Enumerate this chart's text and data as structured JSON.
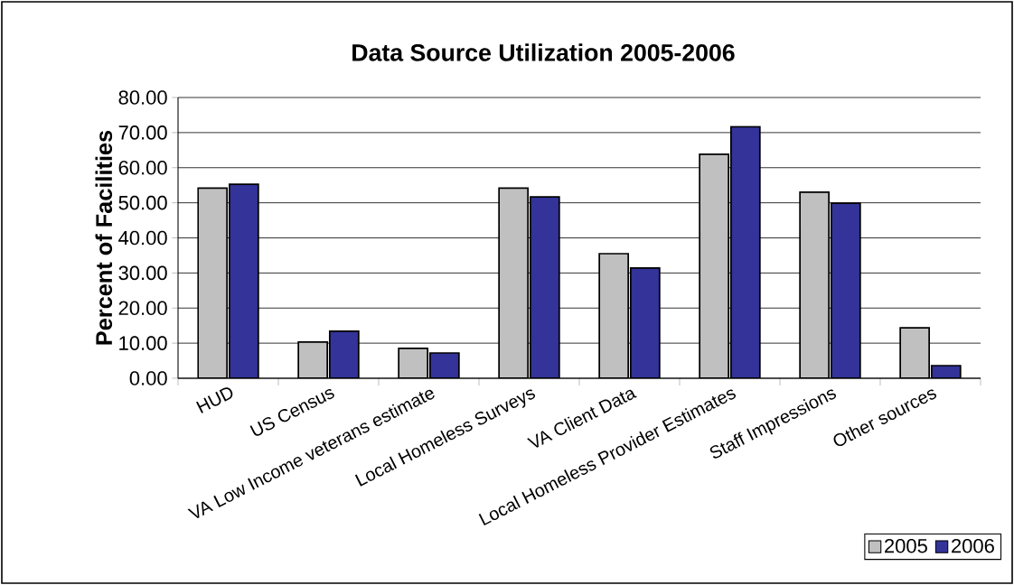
{
  "chart_data": {
    "type": "bar",
    "title": "Data Source Utilization 2005-2006",
    "ylabel": "Percent of Facilities",
    "categories": [
      "HUD",
      "US Census",
      "VA Low Income veterans estimate",
      "Local Homeless Surveys",
      "VA Client Data",
      "Local Homeless Provider Estimates",
      "Staff Impressions",
      "Other sources"
    ],
    "series": [
      {
        "name": "2005",
        "color": "#c0c0c0",
        "values": [
          54.2,
          10.3,
          8.5,
          54.2,
          35.5,
          63.8,
          53.0,
          14.4
        ]
      },
      {
        "name": "2006",
        "color": "#333399",
        "values": [
          55.3,
          13.4,
          7.2,
          51.7,
          31.4,
          71.7,
          49.9,
          3.6
        ]
      }
    ],
    "ylim": [
      0,
      80
    ],
    "yticks": [
      {
        "value": 0,
        "label": "0.00"
      },
      {
        "value": 10,
        "label": "10.00"
      },
      {
        "value": 20,
        "label": "20.00"
      },
      {
        "value": 30,
        "label": "30.00"
      },
      {
        "value": 40,
        "label": "40.00"
      },
      {
        "value": 50,
        "label": "50.00"
      },
      {
        "value": 60,
        "label": "60.00"
      },
      {
        "value": 70,
        "label": "70.00"
      },
      {
        "value": 80,
        "label": "80.00"
      }
    ],
    "grid": "y",
    "legend": "bottom right"
  }
}
